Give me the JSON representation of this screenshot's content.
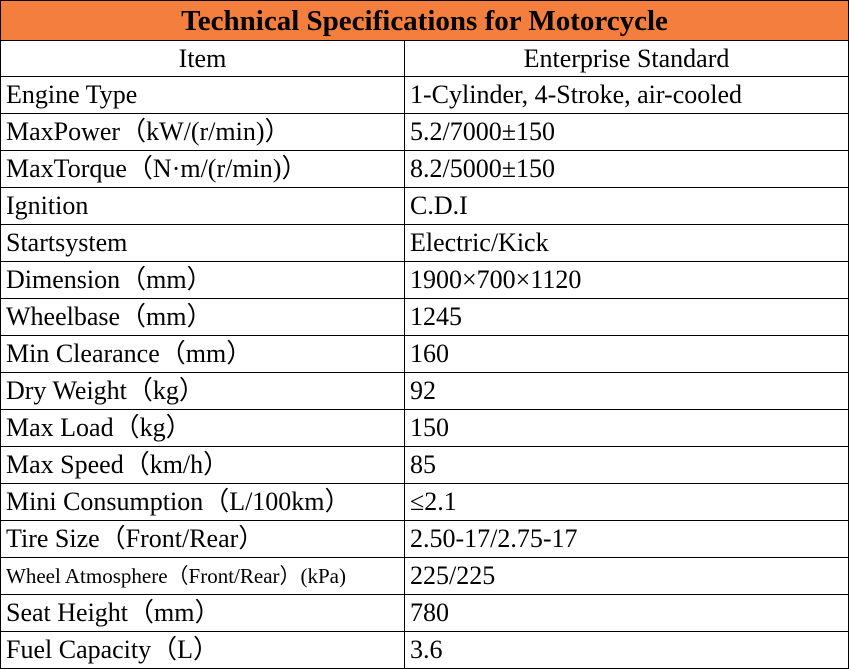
{
  "title": "Technical Specifications for Motorcycle",
  "header": {
    "item": "Item",
    "standard": "Enterprise Standard"
  },
  "rows": [
    {
      "label": "Engine Type",
      "value": "1-Cylinder, 4-Stroke, air-cooled"
    },
    {
      "label": "MaxPower（kW/(r/min)）",
      "value": "5.2/7000±150"
    },
    {
      "label": "MaxTorque（N·m/(r/min)）",
      "value": "8.2/5000±150"
    },
    {
      "label": "Ignition",
      "value": "C.D.I"
    },
    {
      "label": "Startsystem",
      "value": "Electric/Kick"
    },
    {
      "label": "Dimension（mm）",
      "value": "1900×700×1120"
    },
    {
      "label": "Wheelbase（mm）",
      "value": "1245"
    },
    {
      "label": "Min Clearance（mm）",
      "value": "160"
    },
    {
      "label": "Dry Weight（kg）",
      "value": "92"
    },
    {
      "label": "Max Load（kg）",
      "value": "150"
    },
    {
      "label": "Max Speed（km/h）",
      "value": "85"
    },
    {
      "label": "Mini Consumption（L/100km）",
      "value": "≤2.1"
    },
    {
      "label": "Tire Size（Front/Rear）",
      "value": "2.50-17/2.75-17"
    },
    {
      "label": "Wheel Atmosphere（Front/Rear）(kPa)",
      "value": "225/225"
    },
    {
      "label": "Seat Height（mm）",
      "value": "780"
    },
    {
      "label": "Fuel Capacity（L）",
      "value": "3.6"
    }
  ]
}
